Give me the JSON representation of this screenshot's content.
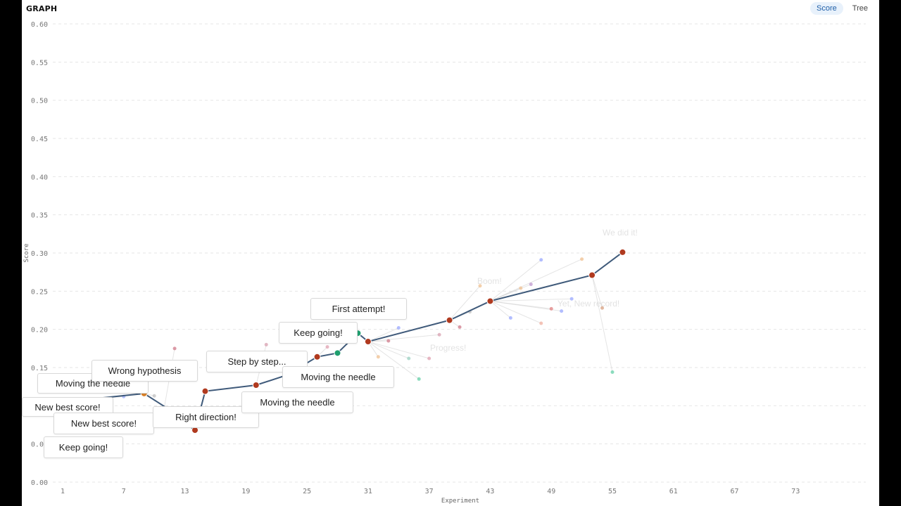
{
  "header": {
    "title": "GRAPH",
    "view_options": [
      "Score",
      "Tree"
    ],
    "active_view": "Score"
  },
  "chart_data": {
    "type": "line",
    "xlabel": "Experiment",
    "ylabel": "Score",
    "xlim": [
      0,
      80
    ],
    "ylim": [
      0,
      0.6
    ],
    "xticks": [
      "1",
      "7",
      "13",
      "19",
      "25",
      "31",
      "37",
      "43",
      "49",
      "55",
      "61",
      "67",
      "73"
    ],
    "yticks": [
      "0.00",
      "0.05",
      "0.10",
      "0.15",
      "0.20",
      "0.25",
      "0.30",
      "0.35",
      "0.40",
      "0.45",
      "0.50",
      "0.55",
      "0.60"
    ],
    "grid": true,
    "best_path": {
      "x": [
        1,
        9,
        11,
        14,
        15,
        20,
        23,
        26,
        28,
        30,
        31,
        39,
        43,
        53,
        56
      ],
      "y": [
        0.105,
        0.116,
        0.099,
        0.068,
        0.119,
        0.127,
        0.14,
        0.164,
        0.169,
        0.195,
        0.184,
        0.212,
        0.237,
        0.271,
        0.301
      ],
      "color": "#3f5a7a"
    },
    "highlight_points": [
      {
        "x": 9,
        "y": 0.116,
        "color": "#d9822b"
      },
      {
        "x": 14,
        "y": 0.068,
        "color": "#b03a1f"
      },
      {
        "x": 15,
        "y": 0.119,
        "color": "#b03a1f"
      },
      {
        "x": 20,
        "y": 0.127,
        "color": "#b03a1f"
      },
      {
        "x": 26,
        "y": 0.164,
        "color": "#b03a1f"
      },
      {
        "x": 28,
        "y": 0.169,
        "color": "#1f9e6e"
      },
      {
        "x": 30,
        "y": 0.195,
        "color": "#1f9e6e"
      },
      {
        "x": 31,
        "y": 0.184,
        "color": "#b03a1f"
      },
      {
        "x": 39,
        "y": 0.212,
        "color": "#b03a1f"
      },
      {
        "x": 43,
        "y": 0.237,
        "color": "#b03a1f"
      },
      {
        "x": 53,
        "y": 0.271,
        "color": "#b03a1f"
      },
      {
        "x": 56,
        "y": 0.301,
        "color": "#b03a1f"
      }
    ],
    "faint_points": [
      {
        "x": 12,
        "y": 0.175,
        "color": "#d07a8a"
      },
      {
        "x": 7,
        "y": 0.112,
        "color": "#9aa8ff"
      },
      {
        "x": 10,
        "y": 0.113,
        "color": "#c0c0c0"
      },
      {
        "x": 21,
        "y": 0.18,
        "color": "#d8a0b0"
      },
      {
        "x": 27,
        "y": 0.177,
        "color": "#e0a0b0"
      },
      {
        "x": 28,
        "y": 0.167,
        "color": "#c09ad0"
      },
      {
        "x": 33,
        "y": 0.185,
        "color": "#d07a8a"
      },
      {
        "x": 34,
        "y": 0.202,
        "color": "#9aa8ff"
      },
      {
        "x": 32,
        "y": 0.164,
        "color": "#f0c090"
      },
      {
        "x": 35,
        "y": 0.162,
        "color": "#9ad0c0"
      },
      {
        "x": 36,
        "y": 0.135,
        "color": "#66d0a8"
      },
      {
        "x": 37,
        "y": 0.162,
        "color": "#e0a0b0"
      },
      {
        "x": 38,
        "y": 0.193,
        "color": "#d8a0b0"
      },
      {
        "x": 40,
        "y": 0.203,
        "color": "#d07a8a"
      },
      {
        "x": 41,
        "y": 0.223,
        "color": "#c0c0c0"
      },
      {
        "x": 42,
        "y": 0.257,
        "color": "#f0c090"
      },
      {
        "x": 45,
        "y": 0.215,
        "color": "#9aa8ff"
      },
      {
        "x": 46,
        "y": 0.254,
        "color": "#f0c090"
      },
      {
        "x": 47,
        "y": 0.259,
        "color": "#c09ad0"
      },
      {
        "x": 48,
        "y": 0.291,
        "color": "#9aa8ff"
      },
      {
        "x": 48,
        "y": 0.208,
        "color": "#f0b0a0"
      },
      {
        "x": 49,
        "y": 0.227,
        "color": "#e08080"
      },
      {
        "x": 50,
        "y": 0.224,
        "color": "#9aa8ff"
      },
      {
        "x": 51,
        "y": 0.24,
        "color": "#9aa8ff"
      },
      {
        "x": 52,
        "y": 0.292,
        "color": "#f0c090"
      },
      {
        "x": 54,
        "y": 0.228,
        "color": "#d8a080"
      },
      {
        "x": 55,
        "y": 0.144,
        "color": "#66d0a8"
      }
    ],
    "annotations": [
      "New best score!",
      "Moving the needle",
      "Wrong hypothesis",
      "New best score!",
      "Keep going!",
      "Right direction!",
      "Step by step...",
      "Moving the needle",
      "Moving the needle",
      "Keep going!",
      "First attempt!"
    ],
    "faint_annotations": [
      "We did it!",
      "Boom!",
      "Yet, New record!",
      "Progress!"
    ]
  }
}
